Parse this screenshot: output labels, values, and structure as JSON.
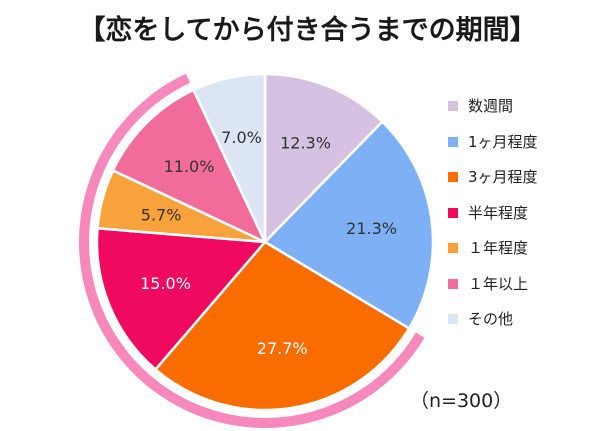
{
  "chart_data": {
    "type": "pie",
    "title": "【恋をしてから付き合うまでの期間】",
    "note": "（n=300）",
    "slices": [
      {
        "label": "数週間",
        "value": 12.3,
        "value_label": "12.3%",
        "color": "#d5c2e2",
        "text_color": "#333333"
      },
      {
        "label": "1ヶ月程度",
        "value": 21.3,
        "value_label": "21.3%",
        "color": "#7eb0f5",
        "text_color": "#333333"
      },
      {
        "label": "3ヶ月程度",
        "value": 27.7,
        "value_label": "27.7%",
        "color": "#f96d00",
        "text_color": "#ffffff"
      },
      {
        "label": "半年程度",
        "value": 15.0,
        "value_label": "15.0%",
        "color": "#ef0a5f",
        "text_color": "#ffffff"
      },
      {
        "label": "１年程度",
        "value": 5.7,
        "value_label": "5.7%",
        "color": "#f7a23b",
        "text_color": "#333333"
      },
      {
        "label": "１年以上",
        "value": 11.0,
        "value_label": "11.0%",
        "color": "#f26c9b",
        "text_color": "#333333"
      },
      {
        "label": "その他",
        "value": 7.0,
        "value_label": "7.0%",
        "color": "#dce5f4",
        "text_color": "#333333"
      }
    ],
    "highlight_arc_color": "#f788bb",
    "highlighted_slices": [
      "3ヶ月程度",
      "半年程度",
      "１年程度",
      "１年以上"
    ]
  }
}
